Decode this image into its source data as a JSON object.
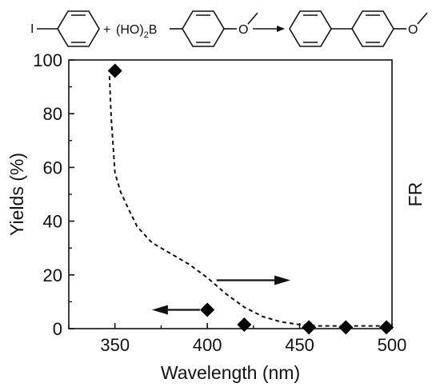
{
  "reaction_scheme": {
    "reactant1_substituent": "I",
    "plus_sign": "+",
    "reactant2_boronic": "(HO)",
    "reactant2_subscript": "2",
    "reactant2_boron": "B",
    "reactant2_oxygen": "O",
    "product_oxygen": "O"
  },
  "chart_data": {
    "type": "scatter",
    "xlabel": "Wavelength (nm)",
    "ylabel": "Yields (%)",
    "y2label": "FR",
    "xlim": [
      325,
      500
    ],
    "ylim": [
      0,
      100
    ],
    "xticks": [
      350,
      400,
      450,
      500
    ],
    "yticks": [
      0,
      20,
      40,
      60,
      80,
      100
    ],
    "grid": false,
    "series": [
      {
        "marker": "diamond",
        "color": "#000000",
        "x": [
          350,
          400,
          420,
          455,
          475,
          497
        ],
        "y": [
          96,
          7,
          1.5,
          0.5,
          0.5,
          0.5
        ]
      },
      {
        "style": "dashed-line",
        "color": "#000000",
        "x": [
          347,
          348,
          350,
          353,
          357,
          362,
          370,
          380,
          390,
          400,
          410,
          420,
          430,
          440,
          450,
          460,
          470,
          480,
          490,
          500
        ],
        "y": [
          94,
          78,
          58,
          51,
          45,
          38,
          32,
          28,
          24,
          19,
          13,
          8,
          4.5,
          2.5,
          1.5,
          1,
          1,
          1,
          1,
          1
        ]
      }
    ],
    "annotations": [
      {
        "type": "arrow",
        "direction": "left",
        "x_from": 396,
        "x_to": 370,
        "y": 7
      },
      {
        "type": "arrow",
        "direction": "right",
        "x_from": 405,
        "x_to": 445,
        "y": 18
      }
    ]
  }
}
